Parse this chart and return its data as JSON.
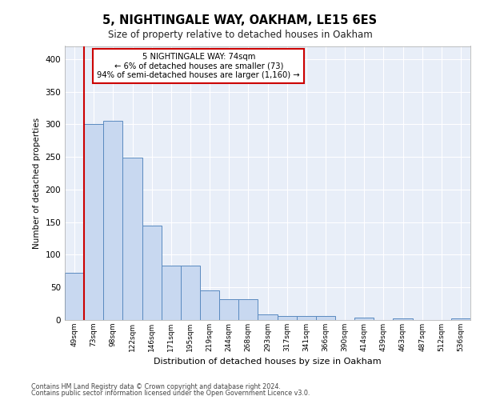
{
  "title1": "5, NIGHTINGALE WAY, OAKHAM, LE15 6ES",
  "title2": "Size of property relative to detached houses in Oakham",
  "xlabel": "Distribution of detached houses by size in Oakham",
  "ylabel": "Number of detached properties",
  "categories": [
    "49sqm",
    "73sqm",
    "98sqm",
    "122sqm",
    "146sqm",
    "171sqm",
    "195sqm",
    "219sqm",
    "244sqm",
    "268sqm",
    "293sqm",
    "317sqm",
    "341sqm",
    "366sqm",
    "390sqm",
    "414sqm",
    "439sqm",
    "463sqm",
    "487sqm",
    "512sqm",
    "536sqm"
  ],
  "values": [
    72,
    300,
    305,
    249,
    145,
    83,
    83,
    45,
    32,
    32,
    9,
    6,
    6,
    6,
    0,
    4,
    0,
    3,
    0,
    0,
    3
  ],
  "bar_color": "#c8d8f0",
  "bar_edge_color": "#5a8ac0",
  "ylim": [
    0,
    420
  ],
  "yticks": [
    0,
    50,
    100,
    150,
    200,
    250,
    300,
    350,
    400
  ],
  "vline_color": "#cc0000",
  "plot_bg_color": "#e8eef8",
  "grid_color": "#ffffff",
  "annotation_line1": "5 NIGHTINGALE WAY: 74sqm",
  "annotation_line2": "← 6% of detached houses are smaller (73)",
  "annotation_line3": "94% of semi-detached houses are larger (1,160) →",
  "footer1": "Contains HM Land Registry data © Crown copyright and database right 2024.",
  "footer2": "Contains public sector information licensed under the Open Government Licence v3.0."
}
